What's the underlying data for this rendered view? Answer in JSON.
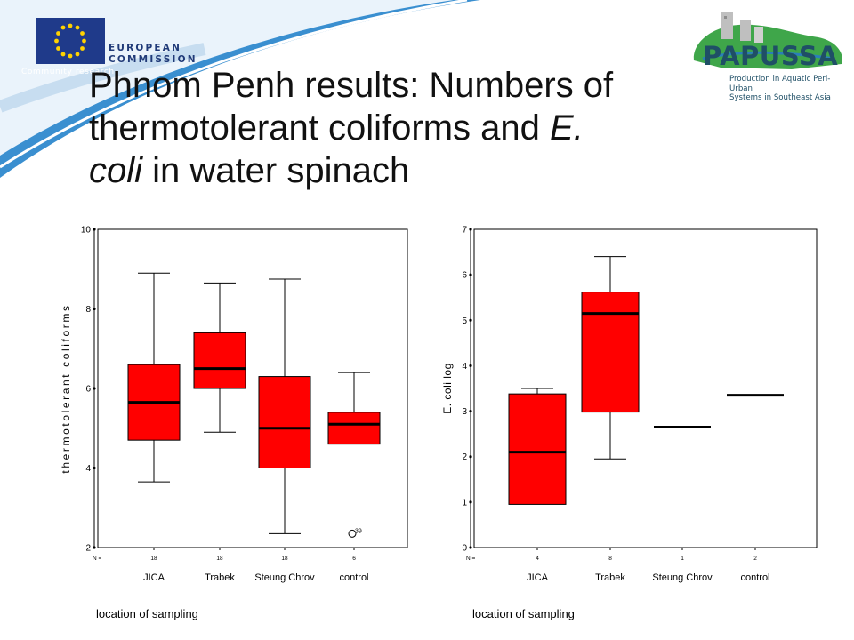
{
  "slide": {
    "title": {
      "line1": "Phnom Penh results: Numbers of",
      "line2": "thermotolerant coliforms and ",
      "line2_italic": "E.",
      "line3_italic": "coli",
      "line3": " in water spinach"
    },
    "logos": {
      "eu": {
        "line1": "EUROPEAN",
        "line2": "COMMISSION",
        "sub": "Community research"
      },
      "papussa": {
        "name": "PAPUSSA",
        "sub1": "Production in Aquatic Peri-Urban",
        "sub2": "Systems in Southeast Asia"
      }
    }
  },
  "colors": {
    "box_fill": "#ff0000",
    "median": "#000000",
    "swoosh": "#3a8fd0"
  },
  "chart_data": [
    {
      "type": "boxplot",
      "ylabel": "thermotolerant coliforms",
      "xlabel": "location of sampling",
      "n_label": "N =",
      "ylim": [
        2,
        10
      ],
      "yticks": [
        2,
        4,
        6,
        8,
        10
      ],
      "categories": [
        "JICA",
        "Trabek",
        "Steung Chrov",
        "control"
      ],
      "n": [
        "18",
        "18",
        "18",
        "6"
      ],
      "boxes": [
        {
          "min": 3.65,
          "q1": 4.7,
          "median": 5.65,
          "q3": 6.6,
          "max": 8.9
        },
        {
          "min": 4.9,
          "q1": 6.0,
          "median": 6.5,
          "q3": 7.4,
          "max": 8.65
        },
        {
          "min": 2.35,
          "q1": 4.0,
          "median": 5.0,
          "q3": 6.3,
          "max": 8.75
        },
        {
          "min": 4.6,
          "q1": 4.6,
          "median": 5.1,
          "q3": 5.4,
          "max": 6.4
        }
      ],
      "outliers": [
        {
          "category": "control",
          "value": 2.35,
          "label": "39"
        }
      ],
      "grid": false
    },
    {
      "type": "boxplot",
      "ylabel": "E. coli log",
      "xlabel": "location of sampling",
      "n_label": "N =",
      "ylim": [
        0,
        7
      ],
      "yticks": [
        0,
        1,
        2,
        3,
        4,
        5,
        6,
        7
      ],
      "categories": [
        "JICA",
        "Trabek",
        "Steung Chrov",
        "control"
      ],
      "n": [
        "4",
        "8",
        "1",
        "2"
      ],
      "boxes": [
        {
          "min": 0.95,
          "q1": 0.95,
          "median": 2.1,
          "q3": 3.38,
          "max": 3.5
        },
        {
          "min": 1.95,
          "q1": 2.98,
          "median": 5.15,
          "q3": 5.62,
          "max": 6.4
        },
        {
          "min": 2.65,
          "q1": 2.65,
          "median": 2.65,
          "q3": 2.65,
          "max": 2.65
        },
        {
          "min": 3.35,
          "q1": 3.35,
          "median": 3.35,
          "q3": 3.35,
          "max": 3.35
        }
      ],
      "outliers": [],
      "grid": false
    }
  ]
}
